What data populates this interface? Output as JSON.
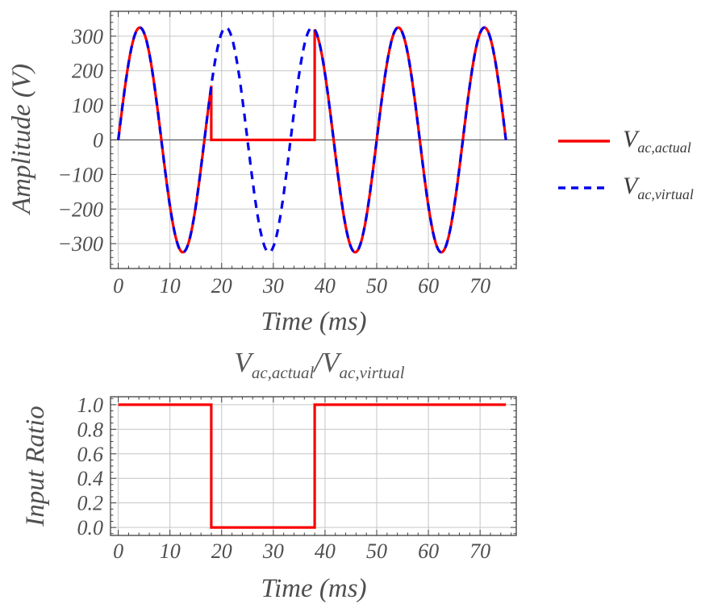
{
  "colors": {
    "background": "#ffffff",
    "series_actual": "#f80000",
    "series_virtual": "#0000ee",
    "grid": "#c6c6c6",
    "zero_axis": "#5a5a5a",
    "frame": "#3f3f3f",
    "tick_text": "#4f4f4f",
    "label_text": "#4f4f4f",
    "legend_text": "#3c3c3c",
    "title_text": "#585858"
  },
  "legend": {
    "position": "right-outside",
    "entries": [
      {
        "label": "V_ac,actual",
        "base": "V",
        "sub": "ac,actual",
        "color": "#f80000",
        "line_style": "solid"
      },
      {
        "label": "V_ac,virtual",
        "base": "V",
        "sub": "ac,virtual",
        "color": "#0000ee",
        "line_style": "dashed"
      }
    ]
  },
  "chart_data": [
    {
      "type": "line",
      "title": "",
      "xlabel": "Time (ms)",
      "ylabel": "Amplitude (V)",
      "xlim": [
        -1.5,
        77
      ],
      "ylim": [
        -372,
        372
      ],
      "xticks": [
        0,
        10,
        20,
        30,
        40,
        50,
        60,
        70
      ],
      "xtick_labels": [
        "0",
        "10",
        "20",
        "30",
        "40",
        "50",
        "60",
        "70"
      ],
      "yticks": [
        -300,
        -200,
        -100,
        0,
        100,
        200,
        300
      ],
      "ytick_labels": [
        "−300",
        "−200",
        "−100",
        "0",
        "100",
        "200",
        "300"
      ],
      "x_minor_step": 2,
      "y_minor_step": 20,
      "grid": true,
      "zero_line": true,
      "series": [
        {
          "name": "V_ac,actual",
          "kind": "sine_with_dropout",
          "amplitude_V": 325,
          "frequency_Hz": 60,
          "period_ms": 16.6667,
          "t_range_ms": [
            0,
            75
          ],
          "dropout_ms": [
            18,
            38
          ],
          "dropout_value": 0,
          "color": "#f80000",
          "line_style": "solid",
          "line_width": 3.2
        },
        {
          "name": "V_ac,virtual",
          "kind": "sine",
          "amplitude_V": 325,
          "frequency_Hz": 60,
          "period_ms": 16.6667,
          "t_range_ms": [
            0,
            75
          ],
          "color": "#0000ee",
          "line_style": "dashed",
          "line_width": 3.2
        }
      ]
    },
    {
      "type": "line",
      "title": "V_ac,actual/V_ac,virtual",
      "title_math": {
        "v1": "V",
        "sub1": "ac,actual",
        "slash": "/",
        "v2": "V",
        "sub2": "ac,virtual"
      },
      "xlabel": "Time (ms)",
      "ylabel": "Input Ratio",
      "xlim": [
        -1.5,
        77
      ],
      "ylim": [
        -0.065,
        1.065
      ],
      "xticks": [
        0,
        10,
        20,
        30,
        40,
        50,
        60,
        70
      ],
      "xtick_labels": [
        "0",
        "10",
        "20",
        "30",
        "40",
        "50",
        "60",
        "70"
      ],
      "yticks": [
        0,
        0.2,
        0.4,
        0.6,
        0.8,
        1.0
      ],
      "ytick_labels": [
        "0.0",
        "0.2",
        "0.4",
        "0.6",
        "0.8",
        "1.0"
      ],
      "x_minor_step": 2,
      "y_minor_step": 0.05,
      "grid": true,
      "zero_line": false,
      "series": [
        {
          "name": "Input Ratio",
          "kind": "step",
          "points": [
            [
              0,
              1
            ],
            [
              18,
              1
            ],
            [
              18,
              0
            ],
            [
              38,
              0
            ],
            [
              38,
              1
            ],
            [
              75,
              1
            ]
          ],
          "color": "#f80000",
          "line_style": "solid",
          "line_width": 3.2
        }
      ]
    }
  ]
}
